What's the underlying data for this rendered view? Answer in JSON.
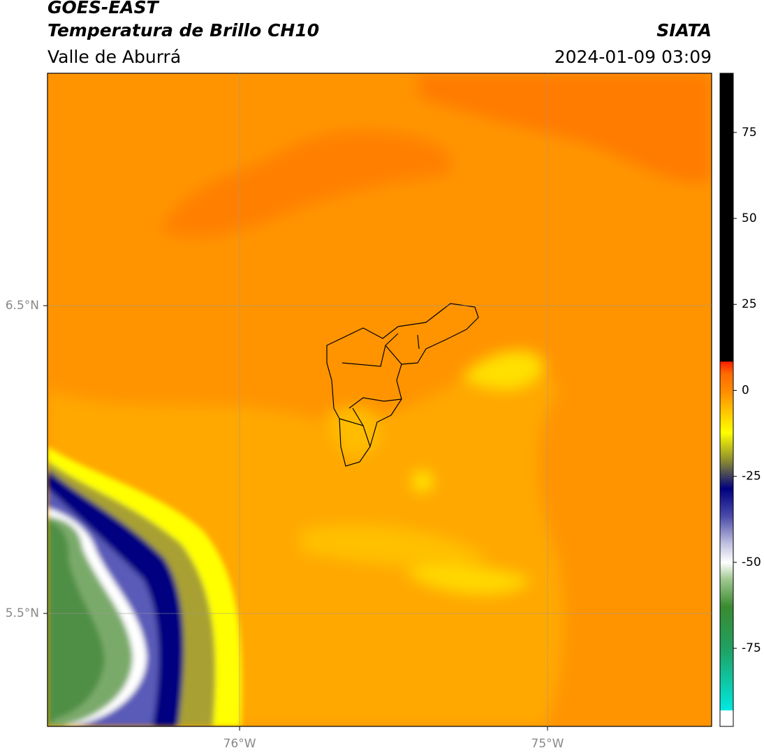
{
  "header": {
    "title": "GOES-EAST",
    "subtitle": "Temperatura de Brillo CH10",
    "region": "Valle de Aburrá",
    "source": "SIATA",
    "datetime": "2024-01-09 03:09"
  },
  "map": {
    "xlim": [
      -76.624,
      -74.467
    ],
    "ylim": [
      5.133,
      7.255
    ],
    "xticks": [
      {
        "value": -76,
        "label": "76°W"
      },
      {
        "value": -75,
        "label": "75°W"
      }
    ],
    "yticks": [
      {
        "value": 6.5,
        "label": "6.5°N"
      },
      {
        "value": 5.5,
        "label": "5.5°N"
      }
    ],
    "grid": true
  },
  "colorbar": {
    "lim": [
      -97.7,
      92.2
    ],
    "ticks": [
      75,
      50,
      25,
      0,
      -25,
      -50,
      -75
    ]
  }
}
